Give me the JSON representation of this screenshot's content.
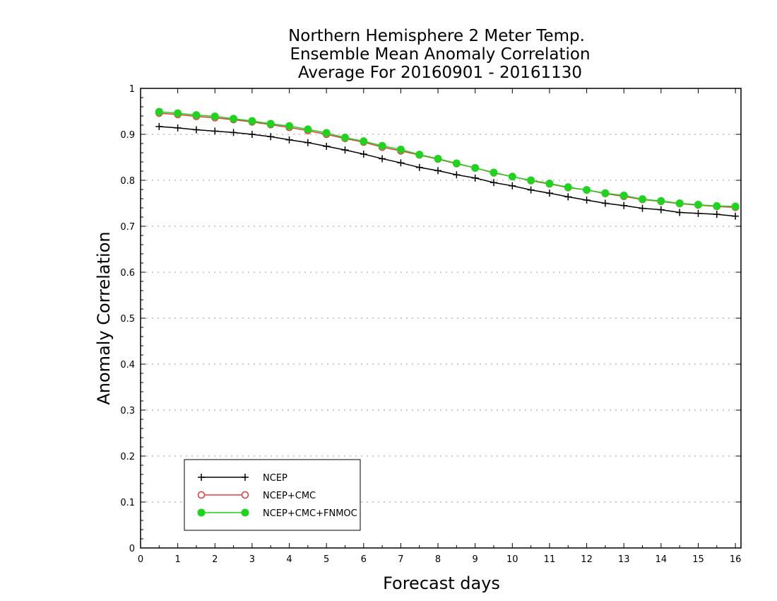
{
  "chart_data": {
    "type": "line",
    "title": [
      "Northern Hemisphere 2 Meter Temp.",
      "Ensemble Mean Anomaly Correlation",
      "Average For 20160901 - 20161130"
    ],
    "xlabel": "Forecast days",
    "ylabel": "Anomaly Correlation",
    "xlim": [
      0,
      16.15
    ],
    "ylim": [
      0,
      1
    ],
    "xticks": [
      "0",
      "1",
      "2",
      "3",
      "4",
      "5",
      "6",
      "7",
      "8",
      "9",
      "10",
      "11",
      "12",
      "13",
      "14",
      "15",
      "16"
    ],
    "yticks": [
      "0",
      "0.1",
      "0.2",
      "0.3",
      "0.4",
      "0.5",
      "0.6",
      "0.7",
      "0.8",
      "0.9",
      "1"
    ],
    "grid": "horizontal-dotted",
    "legend_position": "bottom-left",
    "x": [
      0.5,
      1,
      1.5,
      2,
      2.5,
      3,
      3.5,
      4,
      4.5,
      5,
      5.5,
      6,
      6.5,
      7,
      7.5,
      8,
      8.5,
      9,
      9.5,
      10,
      10.5,
      11,
      11.5,
      12,
      12.5,
      13,
      13.5,
      14,
      14.5,
      15,
      15.5,
      16
    ],
    "series": [
      {
        "name": "NCEP",
        "color": "#000000",
        "marker": "plus",
        "values": [
          0.917,
          0.914,
          0.91,
          0.907,
          0.904,
          0.9,
          0.895,
          0.888,
          0.882,
          0.874,
          0.866,
          0.857,
          0.847,
          0.838,
          0.828,
          0.821,
          0.812,
          0.805,
          0.795,
          0.788,
          0.779,
          0.772,
          0.764,
          0.757,
          0.75,
          0.745,
          0.739,
          0.736,
          0.73,
          0.728,
          0.726,
          0.722
        ]
      },
      {
        "name": "NCEP+CMC",
        "color": "#e53a3a",
        "marker": "open-circle",
        "values": [
          0.946,
          0.943,
          0.939,
          0.936,
          0.932,
          0.927,
          0.921,
          0.915,
          0.908,
          0.9,
          0.891,
          0.883,
          0.872,
          0.864,
          0.855,
          0.846,
          0.836,
          0.827,
          0.816,
          0.808,
          0.799,
          0.792,
          0.784,
          0.779,
          0.771,
          0.765,
          0.758,
          0.754,
          0.749,
          0.746,
          0.743,
          0.741
        ]
      },
      {
        "name": "NCEP+CMC+FNMOC",
        "color": "#1ed41e",
        "marker": "filled-circle",
        "values": [
          0.949,
          0.946,
          0.942,
          0.939,
          0.934,
          0.929,
          0.923,
          0.918,
          0.911,
          0.903,
          0.893,
          0.885,
          0.875,
          0.867,
          0.856,
          0.847,
          0.837,
          0.827,
          0.817,
          0.808,
          0.8,
          0.793,
          0.785,
          0.779,
          0.772,
          0.767,
          0.759,
          0.755,
          0.75,
          0.747,
          0.744,
          0.743
        ]
      }
    ]
  }
}
